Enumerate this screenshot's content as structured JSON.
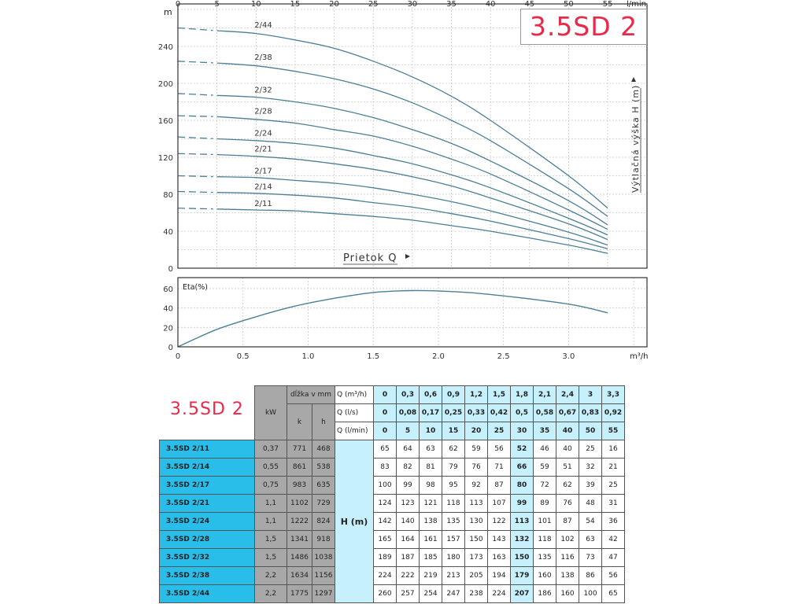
{
  "title": "3.5SD 2",
  "chart_data": [
    {
      "type": "line",
      "xlabel": "Prietok Q",
      "ylabel": "Výtlačná výška H (m)",
      "y_unit": "m",
      "x_unit": "l/min",
      "xlim": [
        0,
        55
      ],
      "ylim": [
        0,
        280
      ],
      "x_ticks": [
        "0",
        "5",
        "10",
        "15",
        "20",
        "25",
        "30",
        "35",
        "40",
        "45",
        "50",
        "55"
      ],
      "y_ticks": [
        "0",
        "40",
        "80",
        "120",
        "160",
        "200",
        "240"
      ],
      "grid": true,
      "x": [
        0,
        5,
        10,
        15,
        20,
        25,
        30,
        35,
        40,
        50,
        55
      ],
      "series": [
        {
          "name": "2/44",
          "values": [
            260,
            257,
            254,
            247,
            238,
            224,
            207,
            186,
            160,
            100,
            65
          ]
        },
        {
          "name": "2/38",
          "values": [
            224,
            222,
            219,
            213,
            205,
            194,
            179,
            160,
            138,
            86,
            56
          ]
        },
        {
          "name": "2/32",
          "values": [
            189,
            187,
            185,
            180,
            173,
            163,
            150,
            135,
            116,
            73,
            47
          ]
        },
        {
          "name": "2/28",
          "values": [
            165,
            164,
            161,
            157,
            150,
            143,
            132,
            118,
            102,
            63,
            42
          ]
        },
        {
          "name": "2/24",
          "values": [
            142,
            140,
            138,
            135,
            130,
            122,
            113,
            101,
            87,
            54,
            36
          ]
        },
        {
          "name": "2/21",
          "values": [
            124,
            123,
            121,
            118,
            113,
            107,
            99,
            89,
            76,
            48,
            31
          ]
        },
        {
          "name": "2/17",
          "values": [
            100,
            99,
            98,
            95,
            92,
            87,
            80,
            72,
            62,
            39,
            25
          ]
        },
        {
          "name": "2/14",
          "values": [
            83,
            82,
            81,
            79,
            76,
            71,
            66,
            59,
            51,
            32,
            21
          ]
        },
        {
          "name": "2/11",
          "values": [
            65,
            64,
            63,
            62,
            59,
            56,
            52,
            46,
            40,
            25,
            16
          ]
        }
      ],
      "color": "#4a7f95"
    },
    {
      "type": "line",
      "ylabel": "Eta(%)",
      "x_unit": "m³/h",
      "xlim": [
        0,
        3.3
      ],
      "ylim": [
        0,
        70
      ],
      "x_ticks": [
        "0",
        "0.5",
        "1.0",
        "1.5",
        "2.0",
        "2.5",
        "3.0"
      ],
      "y_ticks": [
        "0",
        "20",
        "40",
        "60"
      ],
      "grid": true,
      "x": [
        0,
        0.3,
        0.6,
        0.9,
        1.2,
        1.5,
        1.8,
        2.1,
        2.4,
        3.0,
        3.3
      ],
      "values": [
        0,
        18,
        31,
        42,
        50,
        56,
        58,
        57,
        54,
        44,
        35
      ],
      "color": "#4a7f95"
    }
  ],
  "table": {
    "title": "3.5SD 2",
    "kw_header": "kW",
    "length_header": "dĺžka v mm",
    "k_header": "k",
    "h_header": "h",
    "h_label": "H (m)",
    "q_rows": [
      {
        "label": "Q (m³/h)",
        "values": [
          "0",
          "0,3",
          "0,6",
          "0,9",
          "1,2",
          "1,5",
          "1,8",
          "2,1",
          "2,4",
          "3",
          "3,3"
        ]
      },
      {
        "label": "Q (l/s)",
        "values": [
          "0",
          "0,08",
          "0,17",
          "0,25",
          "0,33",
          "0,42",
          "0,5",
          "0,58",
          "0,67",
          "0,83",
          "0,92"
        ]
      },
      {
        "label": "Q (l/min)",
        "values": [
          "0",
          "5",
          "10",
          "15",
          "20",
          "25",
          "30",
          "35",
          "40",
          "50",
          "55"
        ]
      }
    ],
    "rows": [
      {
        "model": "3.5SD 2/11",
        "kw": "0,37",
        "k": "771",
        "h": "468",
        "values": [
          "65",
          "64",
          "63",
          "62",
          "59",
          "56",
          "52",
          "46",
          "40",
          "25",
          "16"
        ]
      },
      {
        "model": "3.5SD 2/14",
        "kw": "0,55",
        "k": "861",
        "h": "538",
        "values": [
          "83",
          "82",
          "81",
          "79",
          "76",
          "71",
          "66",
          "59",
          "51",
          "32",
          "21"
        ]
      },
      {
        "model": "3.5SD 2/17",
        "kw": "0,75",
        "k": "983",
        "h": "635",
        "values": [
          "100",
          "99",
          "98",
          "95",
          "92",
          "87",
          "80",
          "72",
          "62",
          "39",
          "25"
        ]
      },
      {
        "model": "3.5SD 2/21",
        "kw": "1,1",
        "k": "1102",
        "h": "729",
        "values": [
          "124",
          "123",
          "121",
          "118",
          "113",
          "107",
          "99",
          "89",
          "76",
          "48",
          "31"
        ]
      },
      {
        "model": "3.5SD 2/24",
        "kw": "1,1",
        "k": "1222",
        "h": "824",
        "values": [
          "142",
          "140",
          "138",
          "135",
          "130",
          "122",
          "113",
          "101",
          "87",
          "54",
          "36"
        ]
      },
      {
        "model": "3.5SD 2/28",
        "kw": "1,5",
        "k": "1341",
        "h": "918",
        "values": [
          "165",
          "164",
          "161",
          "157",
          "150",
          "143",
          "132",
          "118",
          "102",
          "63",
          "42"
        ]
      },
      {
        "model": "3.5SD 2/32",
        "kw": "1,5",
        "k": "1486",
        "h": "1038",
        "values": [
          "189",
          "187",
          "185",
          "180",
          "173",
          "163",
          "150",
          "135",
          "116",
          "73",
          "47"
        ]
      },
      {
        "model": "3.5SD 2/38",
        "kw": "2,2",
        "k": "1634",
        "h": "1156",
        "values": [
          "224",
          "222",
          "219",
          "213",
          "205",
          "194",
          "179",
          "160",
          "138",
          "86",
          "56"
        ]
      },
      {
        "model": "3.5SD 2/44",
        "kw": "2,2",
        "k": "1775",
        "h": "1297",
        "values": [
          "260",
          "257",
          "254",
          "247",
          "238",
          "224",
          "207",
          "186",
          "160",
          "100",
          "65"
        ]
      }
    ]
  }
}
